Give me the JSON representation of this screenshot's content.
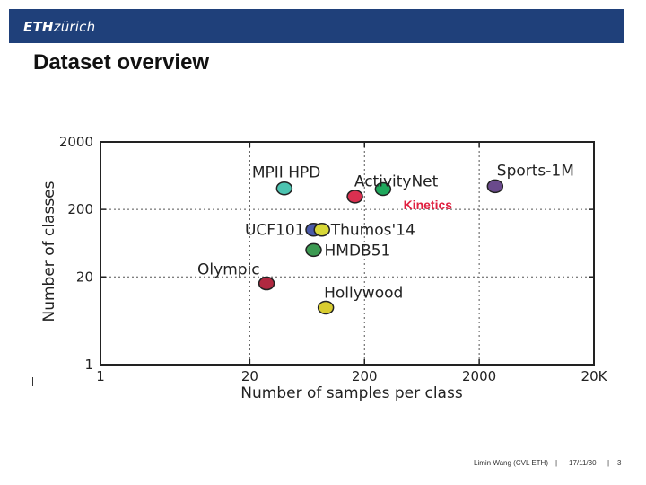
{
  "header": {
    "logo_bold": "ETH",
    "logo_rest": "zürich"
  },
  "slide": {
    "title": "Dataset overview"
  },
  "footer": {
    "author": "Limin Wang (CVL ETH)",
    "sep1": "|",
    "date": "17/11/30",
    "sep2": "|",
    "page": "3"
  },
  "chart_data": {
    "type": "scatter",
    "xlabel": "Number of samples per class",
    "ylabel": "Number of classes",
    "xscale": "log",
    "yscale": "log",
    "xlim": [
      1,
      20000
    ],
    "ylim": [
      1,
      2000
    ],
    "xticks": [
      1,
      20,
      200,
      2000,
      20000
    ],
    "xtick_labels": [
      "1",
      "20",
      "200",
      "2000",
      "20K"
    ],
    "yticks": [
      1,
      20,
      200,
      2000
    ],
    "ytick_labels": [
      "1",
      "20",
      "200",
      "2000"
    ],
    "grid": "dotted",
    "points": [
      {
        "label": "MPII HPD",
        "x": 40,
        "y": 410,
        "color": "#4cc3b0"
      },
      {
        "label": "ActivityNet",
        "x": 290,
        "y": 400,
        "color": "#1fa85c"
      },
      {
        "label": "Kinetics",
        "x": 165,
        "y": 310,
        "color": "#d93050",
        "label_color": "#e02040"
      },
      {
        "label": "Sports-1M",
        "x": 2750,
        "y": 440,
        "color": "#6a4a8c"
      },
      {
        "label": "UCF101",
        "x": 72,
        "y": 100,
        "color": "#4a5aa8"
      },
      {
        "label": "Thumos'14",
        "x": 85,
        "y": 100,
        "color": "#d8d838"
      },
      {
        "label": "HMDB51",
        "x": 72,
        "y": 50,
        "color": "#3c9a52"
      },
      {
        "label": "Olympic",
        "x": 28,
        "y": 16,
        "color": "#b02840"
      },
      {
        "label": "Hollywood",
        "x": 92,
        "y": 7,
        "color": "#d8cc30"
      }
    ]
  }
}
